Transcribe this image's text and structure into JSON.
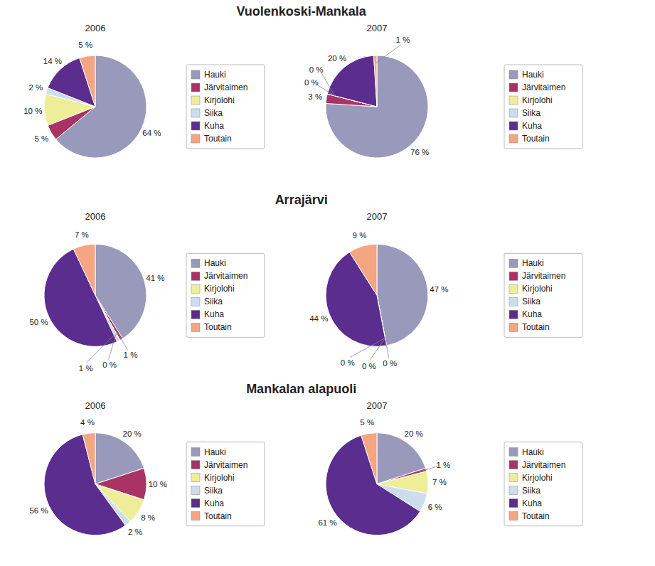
{
  "chart_data": [
    {
      "type": "pie",
      "title": "Vuolenkoski-Mankala",
      "categories": [
        "Hauki",
        "Järvitaimen",
        "Kirjolohi",
        "Siika",
        "Kuha",
        "Toutain"
      ],
      "colors": [
        "#9999BB",
        "#AA3366",
        "#EEEE99",
        "#CCDDEE",
        "#5B2D8E",
        "#F4A582"
      ],
      "series": [
        {
          "name": "2006",
          "values": [
            64,
            5,
            10,
            2,
            14,
            5
          ],
          "value_labels": [
            "64 %",
            "5 %",
            "10 %",
            "2 %",
            "14 %",
            "5 %"
          ]
        },
        {
          "name": "2007",
          "values": [
            76,
            3,
            0,
            0,
            20,
            1
          ],
          "value_labels": [
            "76 %",
            "3 %",
            "0 %",
            "0 %",
            "20 %",
            "1 %"
          ]
        }
      ],
      "data_labels": true,
      "legend": "right"
    },
    {
      "type": "pie",
      "title": "Arrajärvi",
      "categories": [
        "Hauki",
        "Järvitaimen",
        "Kirjolohi",
        "Siika",
        "Kuha",
        "Toutain"
      ],
      "colors": [
        "#9999BB",
        "#AA3366",
        "#EEEE99",
        "#CCDDEE",
        "#5B2D8E",
        "#F4A582"
      ],
      "series": [
        {
          "name": "2006",
          "values": [
            41,
            1,
            0,
            1,
            50,
            7
          ],
          "value_labels": [
            "41 %",
            "1 %",
            "0 %",
            "1 %",
            "50 %",
            "7 %"
          ]
        },
        {
          "name": "2007",
          "values": [
            47,
            0,
            0,
            0,
            44,
            9
          ],
          "value_labels": [
            "47 %",
            "0 %",
            "0 %",
            "0 %",
            "44 %",
            "9 %"
          ]
        }
      ],
      "data_labels": true,
      "legend": "right"
    },
    {
      "type": "pie",
      "title": "Mankalan alapuoli",
      "categories": [
        "Hauki",
        "Järvitaimen",
        "Kirjolohi",
        "Siika",
        "Kuha",
        "Toutain"
      ],
      "colors": [
        "#9999BB",
        "#AA3366",
        "#EEEE99",
        "#CCDDEE",
        "#5B2D8E",
        "#F4A582"
      ],
      "series": [
        {
          "name": "2006",
          "values": [
            20,
            10,
            8,
            2,
            56,
            4
          ],
          "value_labels": [
            "20 %",
            "10 %",
            "8 %",
            "2 %",
            "56 %",
            "4 %"
          ]
        },
        {
          "name": "2007",
          "values": [
            20,
            1,
            7,
            6,
            61,
            5
          ],
          "value_labels": [
            "20 %",
            "1 %",
            "7 %",
            "6 %",
            "61 %",
            "5 %"
          ]
        }
      ],
      "data_labels": true,
      "legend": "right"
    }
  ]
}
